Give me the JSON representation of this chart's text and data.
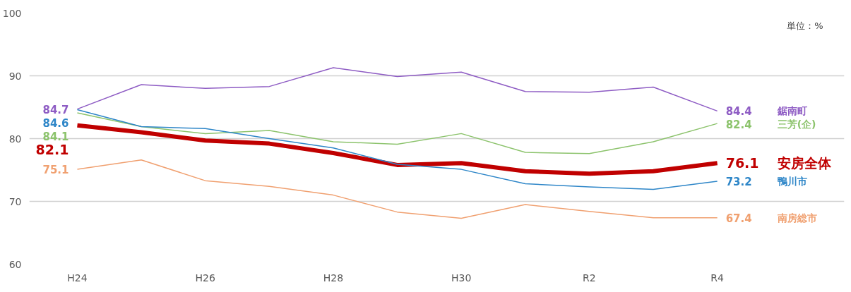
{
  "chart_data": {
    "type": "line",
    "categories": [
      "H24",
      null,
      "H26",
      null,
      "H28",
      null,
      "H30",
      null,
      "R2",
      null,
      "R4"
    ],
    "ylim": [
      60,
      100
    ],
    "yticks": [
      60,
      70,
      80,
      90,
      100
    ],
    "grid": "y",
    "legend": false,
    "annotations": [
      "単位：%"
    ],
    "series": [
      {
        "name": "鋸南町",
        "color": "#8e5cc4",
        "values": [
          84.7,
          88.6,
          88.0,
          88.3,
          91.3,
          89.9,
          90.6,
          87.5,
          87.4,
          88.2,
          84.4
        ],
        "value_labels": [
          "84.7",
          null,
          null,
          null,
          null,
          null,
          null,
          null,
          null,
          null,
          "84.4"
        ]
      },
      {
        "name": "三芳(企)",
        "color": "#8cc36c",
        "values": [
          84.1,
          81.9,
          80.8,
          81.3,
          79.5,
          79.1,
          80.8,
          77.8,
          77.6,
          79.5,
          82.4
        ],
        "value_labels": [
          "84.1",
          null,
          null,
          null,
          null,
          null,
          null,
          null,
          null,
          null,
          "82.4"
        ]
      },
      {
        "name": "安房全体",
        "color": "#c00000",
        "values": [
          82.1,
          81.0,
          79.7,
          79.2,
          77.7,
          75.8,
          76.1,
          74.8,
          74.4,
          74.8,
          76.1
        ],
        "value_labels": [
          "82.1",
          null,
          null,
          null,
          null,
          null,
          null,
          null,
          null,
          null,
          "76.1"
        ]
      },
      {
        "name": "鴨川市",
        "color": "#2e86c8",
        "values": [
          84.6,
          81.9,
          81.6,
          80.0,
          78.5,
          75.9,
          75.1,
          72.8,
          72.3,
          71.9,
          73.2
        ],
        "value_labels": [
          "84.6",
          null,
          null,
          null,
          null,
          null,
          null,
          null,
          null,
          null,
          "73.2"
        ]
      },
      {
        "name": "南房総市",
        "color": "#f0a070",
        "values": [
          75.1,
          76.6,
          73.3,
          72.4,
          71.0,
          68.3,
          67.3,
          69.5,
          68.4,
          67.4,
          67.4
        ],
        "value_labels": [
          "75.1",
          null,
          null,
          null,
          null,
          null,
          null,
          null,
          null,
          null,
          "67.4"
        ]
      }
    ]
  }
}
